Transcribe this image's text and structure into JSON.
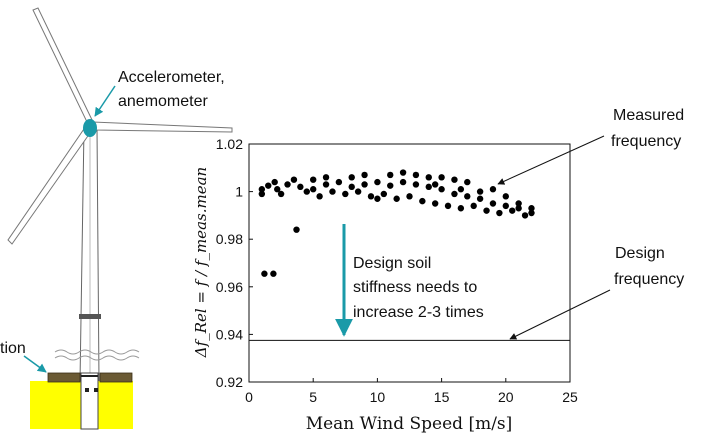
{
  "annotations": {
    "sensor_label_line1": "Accelerometer,",
    "sensor_label_line2": "anemometer",
    "foundation_label": "tion",
    "measured_line1": "Measured",
    "measured_line2": "frequency",
    "design_line1": "Design",
    "design_line2": "frequency",
    "soil_line1": "Design soil",
    "soil_line2": "stiffness needs to",
    "soil_line3": "increase 2-3 times"
  },
  "colors": {
    "accent": "#1a9aa8",
    "data": "#000000",
    "foundation_fill": "#ffff00",
    "foundation_edge": "#5a4a2a"
  },
  "chart_data": {
    "type": "scatter",
    "xlabel": "Mean Wind Speed [m/s]",
    "ylabel": "Δf_Rel = f / f_meas.mean",
    "xlim": [
      0,
      25
    ],
    "ylim": [
      0.92,
      1.02
    ],
    "xticks": [
      "0",
      "5",
      "10",
      "15",
      "20",
      "25"
    ],
    "yticks": [
      "0.92",
      "0.94",
      "0.96",
      "0.98",
      "1",
      "1.02"
    ],
    "grid": false,
    "design_frequency": 0.9375,
    "series": [
      {
        "x": [
          1.2,
          1.9,
          3.7,
          1.0,
          1.5,
          2.2,
          3.0,
          4.0,
          5.0,
          6.0,
          7.0,
          8.0,
          9.0,
          10.0,
          11.0,
          12.0,
          13.0,
          14.0,
          15.0,
          16.0,
          17.0,
          18.0,
          19.0,
          20.0,
          21.0,
          22.0,
          1.0,
          2.5,
          4.5,
          5.5,
          6.5,
          7.5,
          8.5,
          9.5,
          10.5,
          11.5,
          12.5,
          13.5,
          14.5,
          15.5,
          16.5,
          17.5,
          18.5,
          19.5,
          20.5,
          21.5,
          3.5,
          6.0,
          9.0,
          12.0,
          14.0,
          16.0,
          18.0,
          20.0,
          2.0,
          5.0,
          8.0,
          11.0,
          13.0,
          15.0,
          17.0,
          19.0,
          21.0,
          22.0,
          10.0,
          14.5,
          16.5
        ],
        "y": [
          0.9655,
          0.9655,
          0.984,
          1.001,
          1.0025,
          1.001,
          1.003,
          1.002,
          1.001,
          1.003,
          1.004,
          1.002,
          1.003,
          1.004,
          1.0025,
          1.004,
          1.003,
          1.002,
          1.001,
          0.999,
          0.998,
          0.997,
          0.995,
          0.994,
          0.993,
          0.991,
          0.999,
          0.999,
          1.0,
          0.998,
          1.0,
          0.999,
          1.0,
          0.998,
          0.999,
          0.997,
          0.998,
          0.996,
          0.995,
          0.994,
          0.993,
          0.994,
          0.992,
          0.991,
          0.992,
          0.99,
          1.005,
          1.006,
          1.007,
          1.008,
          1.006,
          1.005,
          1.0,
          0.998,
          1.004,
          1.005,
          1.006,
          1.007,
          1.007,
          1.006,
          1.004,
          1.001,
          0.995,
          0.993,
          0.997,
          1.003,
          1.001
        ]
      }
    ]
  }
}
